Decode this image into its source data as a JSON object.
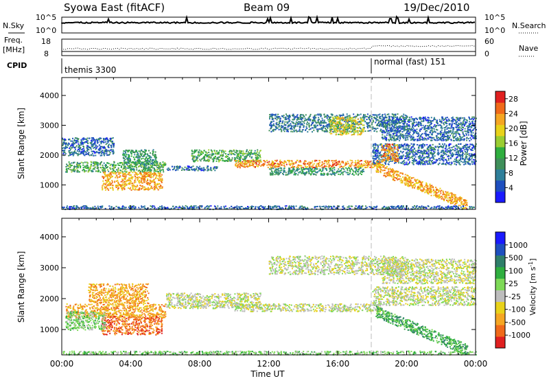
{
  "header": {
    "station": "Syowa East (fitACF)",
    "beam": "Beam 09",
    "date": "19/Dec/2010"
  },
  "summary": {
    "nsky_label": "N.Sky",
    "nsearch_label": "N.Search",
    "left_tick_top": "10^5",
    "left_tick_bottom": "10^0",
    "right_tick_top": "10^5",
    "right_tick_bottom": "10^0",
    "freq_label_1": "Freq.",
    "freq_label_2": "[MHz]",
    "freq_tick_top": "18",
    "freq_tick_bottom": "8",
    "nave_label": "Nave",
    "nave_tick_top": "60",
    "nave_tick_bottom": "0",
    "cpid_label": "CPID",
    "cpid_1": "themis 3300",
    "cpid_2": "normal (fast) 151"
  },
  "colors": {
    "power": [
      "#1a1aff",
      "#1e4fbf",
      "#2f7f9a",
      "#3f8f5a",
      "#2fae3f",
      "#9acd32",
      "#e8d21a",
      "#f5a623",
      "#f06a1a",
      "#e02020"
    ],
    "velocity": [
      "#e02020",
      "#f06a1a",
      "#f5a623",
      "#e8d21a",
      "#bdbdbd",
      "#7ed957",
      "#2fae3f",
      "#2f7f6a",
      "#1e4fbf",
      "#1a1aff"
    ]
  },
  "chart_data": [
    {
      "type": "heatmap",
      "title": "Power",
      "xlabel": "Time UT",
      "ylabel": "Slant Range [km]",
      "xlim": [
        "00:00",
        "24:00"
      ],
      "ylim": [
        180,
        4600
      ],
      "x_ticks": [
        "00:00",
        "04:00",
        "08:00",
        "12:00",
        "16:00",
        "20:00",
        "00:00"
      ],
      "y_ticks": [
        "1000",
        "2000",
        "3000",
        "4000"
      ],
      "colorbar": {
        "label": "Power [dB]",
        "ticks": [
          "4",
          "8",
          "12",
          "16",
          "20",
          "24",
          "28"
        ],
        "range": [
          0,
          30
        ]
      },
      "bands": [
        {
          "t0": 0.2,
          "t1": 6.0,
          "r0": 1450,
          "r1": 1800,
          "v": 11
        },
        {
          "t0": 2.3,
          "t1": 5.8,
          "r0": 850,
          "r1": 1450,
          "v": 21
        },
        {
          "t0": 3.5,
          "t1": 5.5,
          "r0": 1700,
          "r1": 2200,
          "v": 9
        },
        {
          "t0": 6.0,
          "t1": 9.0,
          "r0": 1500,
          "r1": 1650,
          "v": 5
        },
        {
          "t0": 7.5,
          "t1": 11.5,
          "r0": 1800,
          "r1": 2200,
          "v": 11
        },
        {
          "t0": 10.0,
          "t1": 18.5,
          "r0": 1600,
          "r1": 1850,
          "v": 22
        },
        {
          "t0": 12.0,
          "t1": 17.5,
          "r0": 1350,
          "r1": 1600,
          "v": 9
        },
        {
          "t0": 12.0,
          "t1": 20.0,
          "r0": 2800,
          "r1": 3400,
          "v": 6
        },
        {
          "t0": 15.5,
          "t1": 17.5,
          "r0": 2700,
          "r1": 3300,
          "v": 17
        },
        {
          "t0": 18.0,
          "t1": 24.0,
          "r0": 1700,
          "r1": 2400,
          "v": 5
        },
        {
          "t0": 18.5,
          "t1": 24.0,
          "r0": 2500,
          "r1": 3300,
          "v": 5
        },
        {
          "t0": 18.5,
          "t1": 19.5,
          "r0": 1800,
          "r1": 2400,
          "v": 22
        },
        {
          "t0": 0.0,
          "t1": 24.0,
          "r0": 200,
          "r1": 320,
          "v": 5
        },
        {
          "t0": 0.0,
          "t1": 3.0,
          "r0": 2000,
          "r1": 2600,
          "v": 5
        }
      ],
      "arc": {
        "t0": 18.2,
        "t1": 23.5,
        "r0": 1600,
        "r1": 350,
        "w": 180,
        "v": 21
      }
    },
    {
      "type": "heatmap",
      "title": "Velocity",
      "xlabel": "Time UT",
      "ylabel": "Slant Range [km]",
      "xlim": [
        "00:00",
        "24:00"
      ],
      "ylim": [
        180,
        4600
      ],
      "x_ticks": [
        "00:00",
        "04:00",
        "08:00",
        "12:00",
        "16:00",
        "20:00",
        "00:00"
      ],
      "y_ticks": [
        "1000",
        "2000",
        "3000",
        "4000"
      ],
      "colorbar": {
        "label": "Velocity [m s-1]",
        "ticks": [
          "1000",
          "500",
          "100",
          "25",
          "-25",
          "-100",
          "-500",
          "-1000"
        ]
      },
      "bands": [
        {
          "t0": 0.2,
          "t1": 6.0,
          "r0": 1400,
          "r1": 1850,
          "v": 2
        },
        {
          "t0": 2.3,
          "t1": 5.8,
          "r0": 850,
          "r1": 1450,
          "v": 1
        },
        {
          "t0": 1.5,
          "t1": 5.0,
          "r0": 1850,
          "r1": 2500,
          "v": 2
        },
        {
          "t0": 0.2,
          "t1": 2.5,
          "r0": 1000,
          "r1": 1600,
          "v": 5
        },
        {
          "t0": 6.0,
          "t1": 11.5,
          "r0": 1700,
          "r1": 2200,
          "v": 4
        },
        {
          "t0": 10.0,
          "t1": 18.5,
          "r0": 1600,
          "r1": 1850,
          "v": 4
        },
        {
          "t0": 12.0,
          "t1": 20.0,
          "r0": 2800,
          "r1": 3400,
          "v": 4
        },
        {
          "t0": 18.0,
          "t1": 24.0,
          "r0": 1800,
          "r1": 2400,
          "v": 4
        },
        {
          "t0": 18.5,
          "t1": 24.0,
          "r0": 2500,
          "r1": 3300,
          "v": 4
        },
        {
          "t0": 0.0,
          "t1": 24.0,
          "r0": 200,
          "r1": 320,
          "v": 5
        }
      ],
      "arc": {
        "t0": 18.2,
        "t1": 23.5,
        "r0": 1600,
        "r1": 350,
        "w": 180,
        "v": 6
      }
    }
  ]
}
